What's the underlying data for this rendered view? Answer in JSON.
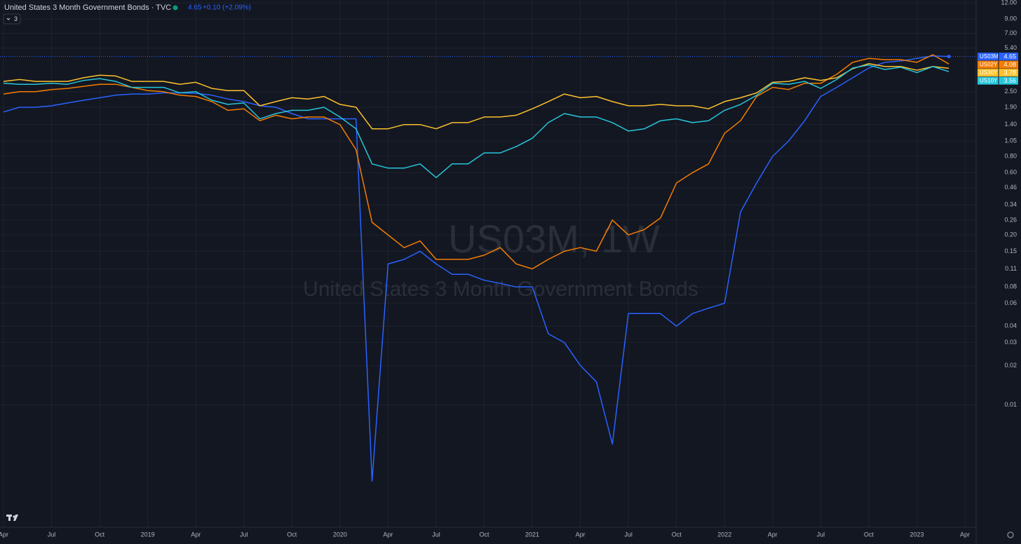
{
  "header": {
    "title": "United States 3 Month Government Bonds · TVC",
    "change": "+0.10 (+2.09%)",
    "indicator_count": "3"
  },
  "watermark": {
    "symbol": "US03M, 1W",
    "description": "United States 3 Month Government Bonds"
  },
  "chart_data": {
    "type": "line",
    "log_scale": true,
    "grid": true,
    "x": [
      "2018-04",
      "2018-05",
      "2018-06",
      "2018-07",
      "2018-08",
      "2018-09",
      "2018-10",
      "2018-11",
      "2018-12",
      "2019-01",
      "2019-02",
      "2019-03",
      "2019-04",
      "2019-05",
      "2019-06",
      "2019-07",
      "2019-08",
      "2019-09",
      "2019-10",
      "2019-11",
      "2019-12",
      "2020-01",
      "2020-02",
      "2020-03",
      "2020-04",
      "2020-05",
      "2020-06",
      "2020-07",
      "2020-08",
      "2020-09",
      "2020-10",
      "2020-11",
      "2020-12",
      "2021-01",
      "2021-02",
      "2021-03",
      "2021-04",
      "2021-05",
      "2021-06",
      "2021-07",
      "2021-08",
      "2021-09",
      "2021-10",
      "2021-11",
      "2021-12",
      "2022-01",
      "2022-02",
      "2022-03",
      "2022-04",
      "2022-05",
      "2022-06",
      "2022-07",
      "2022-08",
      "2022-09",
      "2022-10",
      "2022-11",
      "2022-12",
      "2023-01",
      "2023-02",
      "2023-03"
    ],
    "xlim": [
      "2018-04",
      "2023-04"
    ],
    "xticks": [
      {
        "value": "2018-04",
        "label": "Apr"
      },
      {
        "value": "2018-07",
        "label": "Jul"
      },
      {
        "value": "2018-10",
        "label": "Oct"
      },
      {
        "value": "2019-01",
        "label": "2019"
      },
      {
        "value": "2019-04",
        "label": "Apr"
      },
      {
        "value": "2019-07",
        "label": "Jul"
      },
      {
        "value": "2019-10",
        "label": "Oct"
      },
      {
        "value": "2020-01",
        "label": "2020"
      },
      {
        "value": "2020-04",
        "label": "Apr"
      },
      {
        "value": "2020-07",
        "label": "Jul"
      },
      {
        "value": "2020-10",
        "label": "Oct"
      },
      {
        "value": "2021-01",
        "label": "2021"
      },
      {
        "value": "2021-04",
        "label": "Apr"
      },
      {
        "value": "2021-07",
        "label": "Jul"
      },
      {
        "value": "2021-10",
        "label": "Oct"
      },
      {
        "value": "2022-01",
        "label": "2022"
      },
      {
        "value": "2022-04",
        "label": "Apr"
      },
      {
        "value": "2022-07",
        "label": "Jul"
      },
      {
        "value": "2022-10",
        "label": "Oct"
      },
      {
        "value": "2023-01",
        "label": "2023"
      },
      {
        "value": "2023-04",
        "label": "Apr"
      }
    ],
    "ylim": [
      0.0011,
      12.6
    ],
    "yticks": [
      {
        "value": 12,
        "label": "12.00"
      },
      {
        "value": 9,
        "label": "9.00"
      },
      {
        "value": 7,
        "label": "7.00"
      },
      {
        "value": 5.4,
        "label": "5.40"
      },
      {
        "value": 2.5,
        "label": "2.50"
      },
      {
        "value": 1.9,
        "label": "1.90"
      },
      {
        "value": 1.4,
        "label": "1.40"
      },
      1.05,
      {
        "value": 0.8,
        "label": "0.80"
      },
      {
        "value": 0.6,
        "label": "0.60"
      },
      0.46,
      0.34,
      0.26,
      {
        "value": 0.2,
        "label": "0.20"
      },
      0.15,
      0.11,
      0.08,
      0.06,
      0.04,
      0.03,
      0.02,
      0.01
    ],
    "series": [
      {
        "name": "US03M",
        "color": "#2962ff",
        "values": [
          1.75,
          1.9,
          1.9,
          1.95,
          2.05,
          2.15,
          2.25,
          2.35,
          2.4,
          2.4,
          2.45,
          2.45,
          2.43,
          2.35,
          2.2,
          2.1,
          1.95,
          1.9,
          1.7,
          1.55,
          1.55,
          1.55,
          1.55,
          0.0026,
          0.12,
          0.13,
          0.15,
          0.12,
          0.1,
          0.1,
          0.09,
          0.085,
          0.08,
          0.08,
          0.035,
          0.03,
          0.02,
          0.015,
          0.005,
          0.05,
          0.05,
          0.05,
          0.04,
          0.05,
          0.055,
          0.06,
          0.3,
          0.5,
          0.8,
          1.05,
          1.5,
          2.3,
          2.7,
          3.2,
          3.8,
          4.2,
          4.3,
          4.5,
          4.7,
          4.65
        ]
      },
      {
        "name": "US02Y",
        "color": "#f57c00",
        "values": [
          2.4,
          2.5,
          2.5,
          2.6,
          2.65,
          2.75,
          2.85,
          2.85,
          2.7,
          2.55,
          2.5,
          2.35,
          2.3,
          2.1,
          1.8,
          1.85,
          1.5,
          1.65,
          1.55,
          1.6,
          1.6,
          1.4,
          0.9,
          0.25,
          0.2,
          0.16,
          0.18,
          0.13,
          0.13,
          0.13,
          0.14,
          0.16,
          0.12,
          0.11,
          0.13,
          0.15,
          0.16,
          0.15,
          0.26,
          0.2,
          0.22,
          0.27,
          0.5,
          0.6,
          0.7,
          1.2,
          1.5,
          2.3,
          2.7,
          2.6,
          2.9,
          2.9,
          3.4,
          4.2,
          4.5,
          4.4,
          4.4,
          4.2,
          4.8,
          4.08
        ]
      },
      {
        "name": "US30Y",
        "color": "#fbc02d",
        "values": [
          3.0,
          3.1,
          3.0,
          3.0,
          3.0,
          3.2,
          3.35,
          3.3,
          3.0,
          3.0,
          3.0,
          2.85,
          2.95,
          2.65,
          2.55,
          2.55,
          1.95,
          2.1,
          2.25,
          2.2,
          2.3,
          2.0,
          1.9,
          1.3,
          1.3,
          1.4,
          1.4,
          1.3,
          1.45,
          1.45,
          1.6,
          1.6,
          1.65,
          1.85,
          2.1,
          2.4,
          2.25,
          2.3,
          2.1,
          1.95,
          1.95,
          2.0,
          1.95,
          1.95,
          1.85,
          2.1,
          2.25,
          2.45,
          2.95,
          3.0,
          3.2,
          3.05,
          3.2,
          3.75,
          4.1,
          3.9,
          3.9,
          3.65,
          3.9,
          3.78
        ]
      },
      {
        "name": "US10Y",
        "color": "#26c6da",
        "values": [
          2.9,
          2.85,
          2.85,
          2.9,
          2.85,
          3.05,
          3.15,
          3.0,
          2.7,
          2.7,
          2.7,
          2.45,
          2.5,
          2.15,
          2.0,
          2.05,
          1.55,
          1.7,
          1.8,
          1.8,
          1.9,
          1.6,
          1.3,
          0.7,
          0.65,
          0.65,
          0.7,
          0.55,
          0.7,
          0.7,
          0.85,
          0.85,
          0.95,
          1.1,
          1.45,
          1.7,
          1.6,
          1.6,
          1.45,
          1.25,
          1.3,
          1.5,
          1.55,
          1.45,
          1.5,
          1.8,
          2.0,
          2.35,
          2.9,
          2.85,
          3.0,
          2.65,
          3.1,
          3.8,
          4.0,
          3.7,
          3.85,
          3.5,
          3.9,
          3.56
        ]
      }
    ]
  }
}
